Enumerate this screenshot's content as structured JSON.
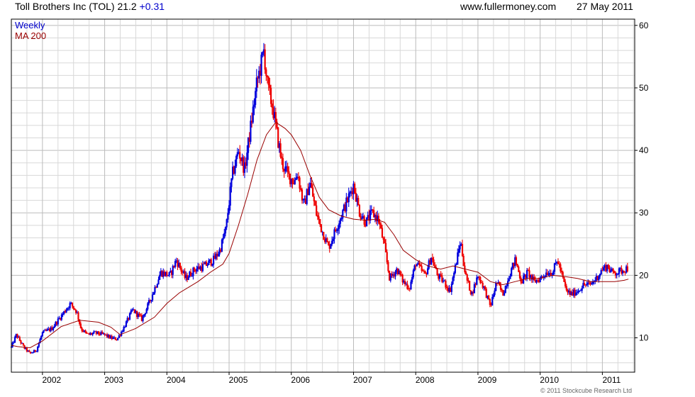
{
  "header": {
    "title": "Toll Brothers Inc (TOL) 21.2",
    "change": "+0.31",
    "site": "www.fullermoney.com",
    "date": "27 May 2011"
  },
  "copyright": "© 2011 Stockcube Research Ltd",
  "colors": {
    "up": "#0000dd",
    "down": "#ee0000",
    "ma": "#990000",
    "grid": "#d8d8d8",
    "major_grid": "#bbbbbb",
    "frame": "#000000"
  },
  "chart_data": {
    "type": "candlestick",
    "legend": [
      {
        "label": "Weekly",
        "color": "#0000cc"
      },
      {
        "label": "MA 200",
        "color": "#990000"
      }
    ],
    "legend_position": "top-left",
    "x_ticks": [
      "2002",
      "2003",
      "2004",
      "2005",
      "2006",
      "2007",
      "2008",
      "2009",
      "2010",
      "2011"
    ],
    "x_tick_values": [
      2002,
      2003,
      2004,
      2005,
      2006,
      2007,
      2008,
      2009,
      2010,
      2011
    ],
    "xlim": [
      2001.5,
      2011.52
    ],
    "y_ticks": [
      "10",
      "20",
      "30",
      "40",
      "50",
      "60"
    ],
    "y_tick_values": [
      10,
      20,
      30,
      40,
      50,
      60
    ],
    "ylim": [
      4.5,
      61
    ],
    "y_axis_side": "right",
    "grid": true,
    "price_path": [
      [
        2001.5,
        8.5
      ],
      [
        2001.58,
        10.5
      ],
      [
        2001.7,
        8.5
      ],
      [
        2001.8,
        7.5
      ],
      [
        2001.9,
        8.0
      ],
      [
        2002.0,
        10.8
      ],
      [
        2002.15,
        11.5
      ],
      [
        2002.3,
        13.5
      ],
      [
        2002.45,
        15.5
      ],
      [
        2002.55,
        14.2
      ],
      [
        2002.62,
        11.5
      ],
      [
        2002.72,
        10.5
      ],
      [
        2002.85,
        10.8
      ],
      [
        2003.0,
        10.5
      ],
      [
        2003.1,
        10.0
      ],
      [
        2003.2,
        9.8
      ],
      [
        2003.3,
        11.5
      ],
      [
        2003.45,
        14.5
      ],
      [
        2003.6,
        13.0
      ],
      [
        2003.75,
        16.5
      ],
      [
        2003.9,
        20.5
      ],
      [
        2004.05,
        20.0
      ],
      [
        2004.15,
        22.5
      ],
      [
        2004.3,
        19.5
      ],
      [
        2004.45,
        21.0
      ],
      [
        2004.6,
        21.5
      ],
      [
        2004.75,
        22.5
      ],
      [
        2004.85,
        24.0
      ],
      [
        2004.95,
        27.5
      ],
      [
        2005.05,
        36.0
      ],
      [
        2005.15,
        40.0
      ],
      [
        2005.25,
        37.0
      ],
      [
        2005.35,
        44.0
      ],
      [
        2005.45,
        51.0
      ],
      [
        2005.52,
        54.0
      ],
      [
        2005.56,
        56.0
      ],
      [
        2005.62,
        50.0
      ],
      [
        2005.7,
        47.0
      ],
      [
        2005.78,
        42.0
      ],
      [
        2005.85,
        38.0
      ],
      [
        2005.95,
        36.0
      ],
      [
        2006.05,
        35.0
      ],
      [
        2006.1,
        36.5
      ],
      [
        2006.2,
        31.0
      ],
      [
        2006.3,
        35.0
      ],
      [
        2006.4,
        30.0
      ],
      [
        2006.5,
        27.0
      ],
      [
        2006.6,
        24.5
      ],
      [
        2006.7,
        27.0
      ],
      [
        2006.8,
        29.5
      ],
      [
        2006.9,
        32.0
      ],
      [
        2007.0,
        34.5
      ],
      [
        2007.1,
        30.0
      ],
      [
        2007.2,
        28.5
      ],
      [
        2007.3,
        30.0
      ],
      [
        2007.4,
        29.0
      ],
      [
        2007.5,
        24.5
      ],
      [
        2007.58,
        19.5
      ],
      [
        2007.7,
        21.0
      ],
      [
        2007.8,
        19.0
      ],
      [
        2007.9,
        18.0
      ],
      [
        2008.0,
        22.0
      ],
      [
        2008.15,
        20.0
      ],
      [
        2008.25,
        23.0
      ],
      [
        2008.35,
        20.0
      ],
      [
        2008.45,
        19.0
      ],
      [
        2008.55,
        17.5
      ],
      [
        2008.65,
        22.0
      ],
      [
        2008.72,
        25.5
      ],
      [
        2008.8,
        20.0
      ],
      [
        2008.9,
        17.0
      ],
      [
        2009.0,
        20.0
      ],
      [
        2009.1,
        18.0
      ],
      [
        2009.2,
        15.0
      ],
      [
        2009.3,
        19.0
      ],
      [
        2009.4,
        17.0
      ],
      [
        2009.5,
        20.0
      ],
      [
        2009.6,
        22.5
      ],
      [
        2009.7,
        19.0
      ],
      [
        2009.8,
        20.5
      ],
      [
        2009.9,
        19.0
      ],
      [
        2010.0,
        19.5
      ],
      [
        2010.1,
        20.5
      ],
      [
        2010.2,
        20.5
      ],
      [
        2010.28,
        22.5
      ],
      [
        2010.35,
        20.0
      ],
      [
        2010.42,
        17.5
      ],
      [
        2010.5,
        17.0
      ],
      [
        2010.6,
        17.5
      ],
      [
        2010.7,
        18.5
      ],
      [
        2010.8,
        18.5
      ],
      [
        2010.9,
        19.5
      ],
      [
        2011.0,
        21.0
      ],
      [
        2011.08,
        21.5
      ],
      [
        2011.15,
        20.5
      ],
      [
        2011.25,
        20.5
      ],
      [
        2011.35,
        21.0
      ],
      [
        2011.41,
        21.2
      ]
    ],
    "ma200_path": [
      [
        2001.5,
        8.8
      ],
      [
        2001.6,
        8.6
      ],
      [
        2001.8,
        8.4
      ],
      [
        2002.0,
        9.5
      ],
      [
        2002.3,
        11.8
      ],
      [
        2002.6,
        12.8
      ],
      [
        2002.9,
        12.5
      ],
      [
        2003.1,
        11.7
      ],
      [
        2003.25,
        10.5
      ],
      [
        2003.5,
        11.5
      ],
      [
        2003.8,
        13.3
      ],
      [
        2004.0,
        15.5
      ],
      [
        2004.2,
        17.2
      ],
      [
        2004.5,
        19.0
      ],
      [
        2004.7,
        20.5
      ],
      [
        2004.9,
        21.8
      ],
      [
        2005.0,
        23.5
      ],
      [
        2005.15,
        28.0
      ],
      [
        2005.3,
        33.0
      ],
      [
        2005.45,
        38.5
      ],
      [
        2005.6,
        42.5
      ],
      [
        2005.75,
        44.5
      ],
      [
        2005.9,
        43.5
      ],
      [
        2006.0,
        42.5
      ],
      [
        2006.15,
        40.0
      ],
      [
        2006.3,
        36.0
      ],
      [
        2006.45,
        32.5
      ],
      [
        2006.6,
        30.5
      ],
      [
        2006.8,
        29.5
      ],
      [
        2007.0,
        29.0
      ],
      [
        2007.2,
        28.8
      ],
      [
        2007.35,
        29.0
      ],
      [
        2007.5,
        28.5
      ],
      [
        2007.65,
        26.5
      ],
      [
        2007.8,
        24.0
      ],
      [
        2008.0,
        22.5
      ],
      [
        2008.2,
        21.5
      ],
      [
        2008.4,
        21.0
      ],
      [
        2008.6,
        21.5
      ],
      [
        2008.8,
        21.0
      ],
      [
        2009.0,
        20.5
      ],
      [
        2009.2,
        19.0
      ],
      [
        2009.4,
        18.5
      ],
      [
        2009.6,
        19.0
      ],
      [
        2009.8,
        19.5
      ],
      [
        2010.0,
        19.5
      ],
      [
        2010.2,
        20.0
      ],
      [
        2010.4,
        19.8
      ],
      [
        2010.6,
        19.5
      ],
      [
        2010.8,
        19.0
      ],
      [
        2011.0,
        19.0
      ],
      [
        2011.2,
        19.0
      ],
      [
        2011.35,
        19.2
      ],
      [
        2011.42,
        19.4
      ]
    ]
  }
}
